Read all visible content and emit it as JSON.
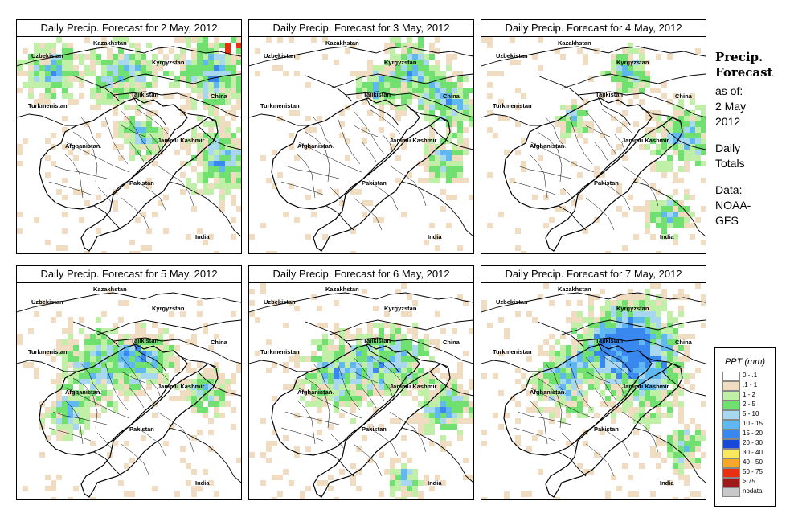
{
  "panels": [
    {
      "title": "Daily Precip. Forecast for  2 May, 2012",
      "day": 2
    },
    {
      "title": "Daily Precip. Forecast for  3 May, 2012",
      "day": 3
    },
    {
      "title": "Daily Precip. Forecast for  4 May, 2012",
      "day": 4
    },
    {
      "title": "Daily Precip. Forecast for  5 May, 2012",
      "day": 5
    },
    {
      "title": "Daily Precip. Forecast for  6 May, 2012",
      "day": 6
    },
    {
      "title": "Daily Precip. Forecast for  7 May, 2012",
      "day": 7
    }
  ],
  "map_labels": {
    "kazakhstan": "Kazakhstan",
    "uzbekistan": "Uzbekistan",
    "kyrgyzstan": "Kyrgyzstan",
    "tajikistan": "Tajikistan",
    "china": "China",
    "turkmenistan": "Turkmenistan",
    "afghanistan": "Afghanistan",
    "jammu_kashmir": "Jammu Kashmir",
    "pakistan": "Pakistan",
    "india": "India"
  },
  "sidebar": {
    "title_line1": "Precip.",
    "title_line2": "Forecast",
    "asof_line1": "as of:",
    "asof_line2": "2 May",
    "asof_line3": "2012",
    "totals_line1": "Daily",
    "totals_line2": "Totals",
    "data_line1": "Data:",
    "data_line2": "NOAA-",
    "data_line3": "GFS"
  },
  "legend": {
    "title": "PPT (mm)",
    "items": [
      {
        "label": "0 - .1",
        "color": "#ffffff"
      },
      {
        "label": ".1 - 1",
        "color": "#f0dcc0"
      },
      {
        "label": "1 - 2",
        "color": "#c0f0a8"
      },
      {
        "label": "2 - 5",
        "color": "#70e070"
      },
      {
        "label": "5 - 10",
        "color": "#a8d8f0"
      },
      {
        "label": "10 - 15",
        "color": "#60b8f0"
      },
      {
        "label": "15 - 20",
        "color": "#3888f0"
      },
      {
        "label": "20 - 30",
        "color": "#1848d8"
      },
      {
        "label": "30 - 40",
        "color": "#f8e860"
      },
      {
        "label": "40 - 50",
        "color": "#f8a828"
      },
      {
        "label": "50 - 75",
        "color": "#e83010"
      },
      {
        "label": "> 75",
        "color": "#a01818"
      },
      {
        "label": "nodata",
        "color": "#c8c8c8"
      }
    ]
  }
}
